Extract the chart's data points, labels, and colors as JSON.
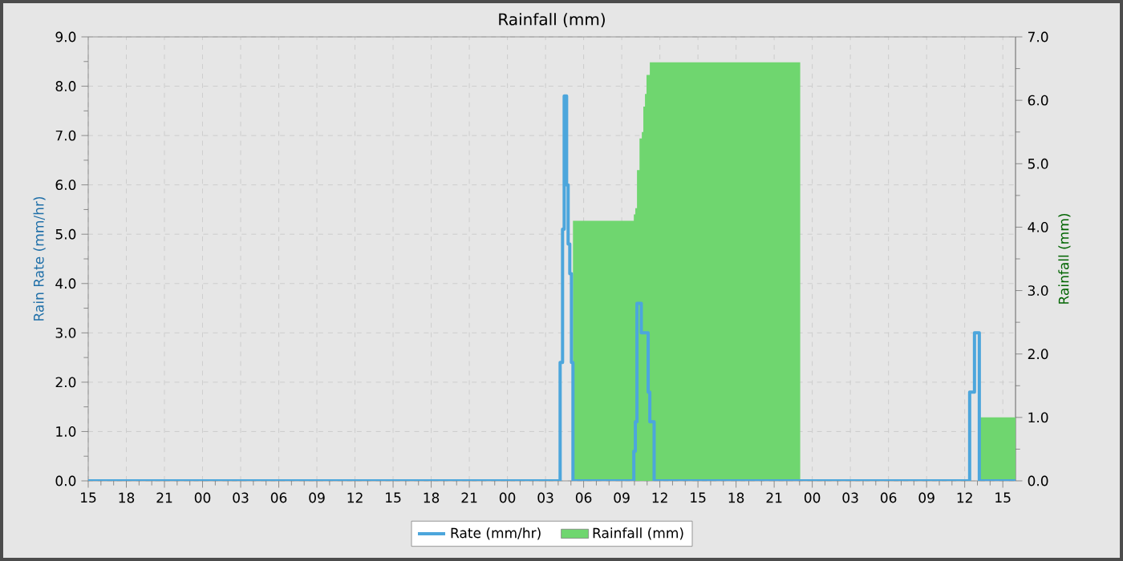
{
  "chart_data": {
    "type": "step",
    "title": "Rainfall (mm)",
    "ylabel": "Rain Rate (mm/hr)",
    "y2label": "Rainfall (mm)",
    "xlim": [
      15,
      88
    ],
    "xticks": [
      {
        "value": 15,
        "label": "15"
      },
      {
        "value": 18,
        "label": "18"
      },
      {
        "value": 21,
        "label": "21"
      },
      {
        "value": 24,
        "label": "00"
      },
      {
        "value": 27,
        "label": "03"
      },
      {
        "value": 30,
        "label": "06"
      },
      {
        "value": 33,
        "label": "09"
      },
      {
        "value": 36,
        "label": "12"
      },
      {
        "value": 39,
        "label": "15"
      },
      {
        "value": 42,
        "label": "18"
      },
      {
        "value": 45,
        "label": "21"
      },
      {
        "value": 48,
        "label": "00"
      },
      {
        "value": 51,
        "label": "03"
      },
      {
        "value": 54,
        "label": "06"
      },
      {
        "value": 57,
        "label": "09"
      },
      {
        "value": 60,
        "label": "12"
      },
      {
        "value": 63,
        "label": "15"
      },
      {
        "value": 66,
        "label": "18"
      },
      {
        "value": 69,
        "label": "21"
      },
      {
        "value": 72,
        "label": "00"
      },
      {
        "value": 75,
        "label": "03"
      },
      {
        "value": 78,
        "label": "06"
      },
      {
        "value": 81,
        "label": "09"
      },
      {
        "value": 84,
        "label": "12"
      },
      {
        "value": 87,
        "label": "15"
      }
    ],
    "ylim": [
      0,
      9
    ],
    "yticks": [
      {
        "value": 0,
        "label": "0.0"
      },
      {
        "value": 1,
        "label": "1.0"
      },
      {
        "value": 2,
        "label": "2.0"
      },
      {
        "value": 3,
        "label": "3.0"
      },
      {
        "value": 4,
        "label": "4.0"
      },
      {
        "value": 5,
        "label": "5.0"
      },
      {
        "value": 6,
        "label": "6.0"
      },
      {
        "value": 7,
        "label": "7.0"
      },
      {
        "value": 8,
        "label": "8.0"
      },
      {
        "value": 9,
        "label": "9.0"
      }
    ],
    "y2lim": [
      0,
      7
    ],
    "y2ticks": [
      {
        "value": 0,
        "label": "0.0"
      },
      {
        "value": 1,
        "label": "1.0"
      },
      {
        "value": 2,
        "label": "2.0"
      },
      {
        "value": 3,
        "label": "3.0"
      },
      {
        "value": 4,
        "label": "4.0"
      },
      {
        "value": 5,
        "label": "5.0"
      },
      {
        "value": 6,
        "label": "6.0"
      },
      {
        "value": 7,
        "label": "7.0"
      }
    ],
    "grid": true,
    "legend": "bottom",
    "marker": "none",
    "series": [
      {
        "name": "Rainfall (mm)",
        "type": "area",
        "axis": "y2",
        "color": "#6fd66f",
        "x": [
          15,
          53.16,
          57.95,
          58.07,
          58.2,
          58.4,
          58.58,
          58.7,
          58.83,
          58.95,
          59.21,
          71.05,
          85.15,
          88
        ],
        "values": [
          0,
          4.1,
          4.2,
          4.3,
          4.9,
          5.4,
          5.5,
          5.9,
          6.1,
          6.4,
          6.6,
          0,
          1.0,
          1.0
        ]
      },
      {
        "name": "Rate (mm/hr)",
        "color": "#4ca6dc",
        "x": [
          15,
          52.15,
          52.34,
          52.47,
          52.66,
          52.78,
          52.91,
          53.04,
          53.16,
          57.95,
          58.07,
          58.2,
          58.54,
          59.08,
          59.21,
          59.55,
          84.39,
          84.77,
          85.15,
          88
        ],
        "values": [
          0,
          2.4,
          5.1,
          7.8,
          6.0,
          4.8,
          4.2,
          2.4,
          0,
          0.6,
          1.2,
          3.6,
          3.0,
          1.8,
          1.2,
          0,
          1.8,
          3.0,
          0,
          0
        ]
      }
    ]
  }
}
